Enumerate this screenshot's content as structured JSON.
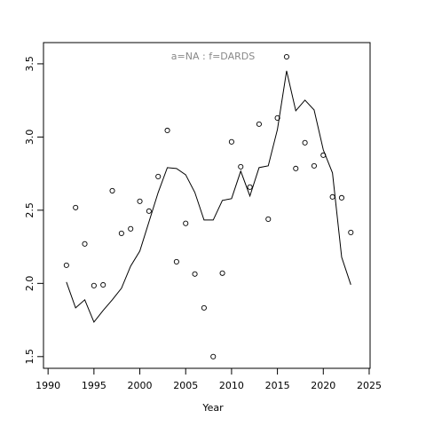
{
  "chart_data": {
    "type": "line",
    "annotation": "a=NA  :  f=DARDS",
    "x_label": "Year",
    "x": [
      1992,
      1993,
      1994,
      1995,
      1996,
      1997,
      1998,
      1999,
      2000,
      2001,
      2002,
      2003,
      2004,
      2005,
      2006,
      2007,
      2008,
      2009,
      2010,
      2011,
      2012,
      2013,
      2014,
      2015,
      2016,
      2017,
      2018,
      2019,
      2020,
      2021,
      2022,
      2023
    ],
    "series": [
      {
        "mode": "points",
        "color": "#000000",
        "values": [
          2.124,
          2.518,
          2.27,
          1.985,
          1.99,
          2.633,
          2.342,
          2.373,
          2.561,
          2.494,
          2.73,
          3.045,
          2.148,
          2.41,
          2.064,
          1.833,
          1.5,
          2.07,
          2.967,
          2.797,
          2.658,
          3.088,
          2.439,
          3.13,
          3.548,
          2.785,
          2.961,
          2.803,
          2.876,
          2.591,
          2.585,
          2.348
        ]
      },
      {
        "mode": "line",
        "color": "#000000",
        "values": [
          2.009,
          1.833,
          1.888,
          1.736,
          1.815,
          1.888,
          1.967,
          2.118,
          2.221,
          2.421,
          2.621,
          2.791,
          2.785,
          2.742,
          2.621,
          2.433,
          2.433,
          2.567,
          2.579,
          2.767,
          2.597,
          2.791,
          2.803,
          3.052,
          3.452,
          3.179,
          3.252,
          3.185,
          2.912,
          2.755,
          2.179,
          1.991
        ]
      }
    ],
    "xlim": [
      1989.5,
      2025.1
    ],
    "ylim": [
      1.42,
      3.645
    ],
    "xticks": [
      1990,
      1995,
      2000,
      2005,
      2010,
      2015,
      2020,
      2025
    ],
    "yticks": [
      1.5,
      {
        "value": 2,
        "label": "2.0"
      },
      2.5,
      {
        "value": 3,
        "label": "3.0"
      },
      3.5
    ]
  }
}
